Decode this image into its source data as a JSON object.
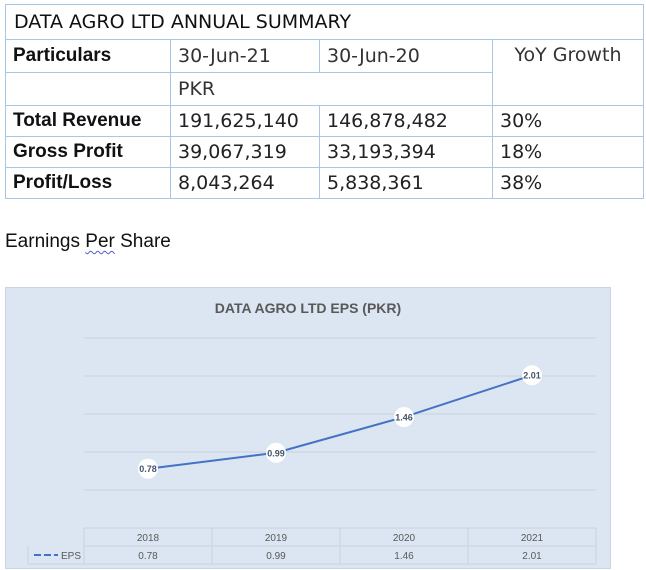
{
  "summary": {
    "title": "DATA AGRO LTD ANNUAL SUMMARY",
    "headers": [
      "Particulars",
      "30-Jun-21",
      "30-Jun-20",
      "YoY Growth"
    ],
    "unit": "PKR",
    "rows": [
      {
        "label": "Total Revenue",
        "fy21": "191,625,140",
        "fy20": "146,878,482",
        "growth": "30%"
      },
      {
        "label": "Gross Profit",
        "fy21": "39,067,319",
        "fy20": "33,193,394",
        "growth": "18%"
      },
      {
        "label": "Profit/Loss",
        "fy21": "8,043,264",
        "fy20": "5,838,361",
        "growth": "38%"
      }
    ]
  },
  "section_heading": {
    "before": "Earnings ",
    "squiggle": "Per",
    "after": " Share"
  },
  "chart_data": {
    "type": "line",
    "title": "DATA AGRO LTD EPS (PKR)",
    "categories": [
      "2018",
      "2019",
      "2020",
      "2021"
    ],
    "series": [
      {
        "name": "EPS",
        "values": [
          0.78,
          0.99,
          1.46,
          2.01
        ]
      }
    ],
    "data_labels": [
      "0.78",
      "0.99",
      "1.46",
      "2.01"
    ],
    "data_table": true,
    "ylim": [
      0,
      2.5
    ],
    "grid": true,
    "legend": "bottom-left (data table key)",
    "colors": {
      "line": "#4472c4",
      "background": "#dbe6f2",
      "grid": "#c9d3de"
    }
  }
}
